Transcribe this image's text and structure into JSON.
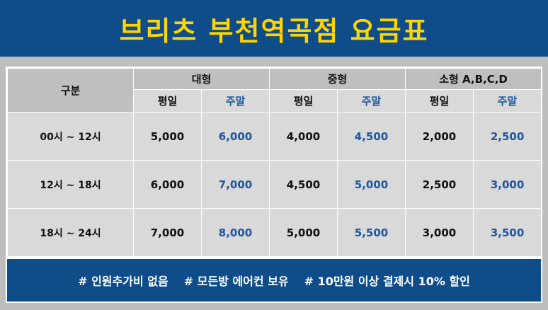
{
  "title": "브리츠 부천역곡점 요금표",
  "header": {
    "category": "구분",
    "large": "대형",
    "medium": "중형",
    "small": "소형 A,B,C,D",
    "weekday": "평일",
    "weekend": "주말"
  },
  "rows": [
    {
      "time": "00시 ~ 12시",
      "large_wd": "5,000",
      "large_we": "6,000",
      "medium_wd": "4,000",
      "medium_we": "4,500",
      "small_wd": "2,000",
      "small_we": "2,500"
    },
    {
      "time": "12시 ~ 18시",
      "large_wd": "6,000",
      "large_we": "7,000",
      "medium_wd": "4,500",
      "medium_we": "5,000",
      "small_wd": "2,500",
      "small_we": "3,000"
    },
    {
      "time": "18시 ~ 24시",
      "large_wd": "7,000",
      "large_we": "8,000",
      "medium_wd": "5,000",
      "medium_we": "5,500",
      "small_wd": "3,000",
      "small_we": "3,500"
    }
  ],
  "footer": {
    "note1": "# 인원추가비 없음",
    "note2": "# 모든방 에어컨 보유",
    "note3": "# 10만원 이상 결제시 10% 할인"
  },
  "colors": {
    "navy": "#0f4c8a",
    "title_yellow": "#ffd400",
    "weekend_blue": "#1e56a0"
  }
}
